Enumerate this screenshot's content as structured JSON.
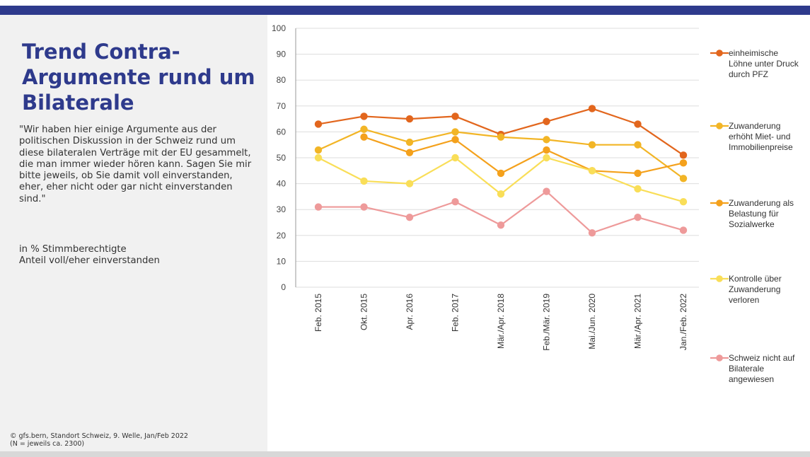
{
  "title": "Trend Contra-Argumente rund um Bilaterale",
  "description": "\"Wir haben hier einige Argumente aus der politischen Diskussion in der Schweiz rund um diese bilateralen Verträge mit der EU gesammelt, die man immer wieder hören kann. Sagen Sie mir bitte jeweils, ob Sie damit voll einverstanden, eher, eher nicht oder gar nicht einverstanden sind.\"",
  "unit_note": {
    "line1": "in % Stimmberechtigte",
    "line2": "Anteil voll/eher einverstanden"
  },
  "footer": {
    "line1": "©  gfs.bern, Standort Schweiz, 9. Welle, Jan/Feb 2022",
    "line2": "(N = jeweils ca. 2300)"
  },
  "colors": {
    "header_bar": "#2e3a8c",
    "title": "#2e3a8c",
    "side_panel": "#f1f1f1",
    "gridline": "#dddddd"
  },
  "chart_data": {
    "type": "line",
    "categories": [
      "Feb. 2015",
      "Okt. 2015",
      "Apr. 2016",
      "Feb. 2017",
      "Mär./Apr. 2018",
      "Feb./Mär. 2019",
      "Mai./Jun. 2020",
      "Mär./Apr. 2021",
      "Jan./Feb. 2022"
    ],
    "ylim": [
      0,
      100
    ],
    "yticks": [
      0,
      10,
      20,
      30,
      40,
      50,
      60,
      70,
      80,
      90,
      100
    ],
    "grid": true,
    "legend_position": "right",
    "series": [
      {
        "name": "einheimische Löhne unter Druck durch PFZ",
        "legend_lines": [
          "einheimische",
          "Löhne unter Druck",
          "durch PFZ"
        ],
        "color": "#e2661d",
        "values": [
          63,
          66,
          65,
          66,
          59,
          64,
          69,
          63,
          51
        ]
      },
      {
        "name": "Zuwanderung erhöht Miet- und Immobilienpreise",
        "legend_lines": [
          "Zuwanderung",
          "erhöht Miet- und",
          "Immobilienpreise"
        ],
        "color": "#f2b526",
        "values": [
          53,
          61,
          56,
          60,
          58,
          57,
          55,
          55,
          42
        ]
      },
      {
        "name": "Zuwanderung als Belastung für Sozialwerke",
        "legend_lines": [
          "Zuwanderung als",
          "Belastung für",
          "Sozialwerke"
        ],
        "color": "#f4a11c",
        "values": [
          null,
          58,
          52,
          57,
          44,
          53,
          45,
          44,
          48
        ]
      },
      {
        "name": "Kontrolle über Zuwanderung verloren",
        "legend_lines": [
          "Kontrolle über",
          "Zuwanderung",
          "verloren"
        ],
        "color": "#f9de58",
        "values": [
          50,
          41,
          40,
          50,
          36,
          50,
          45,
          38,
          33
        ]
      },
      {
        "name": "Schweiz nicht auf Bilaterale angewiesen",
        "legend_lines": [
          "Schweiz nicht auf",
          "Bilaterale",
          "angewiesen"
        ],
        "color": "#ee9a9a",
        "values": [
          31,
          31,
          27,
          33,
          24,
          37,
          21,
          27,
          22
        ]
      }
    ]
  }
}
